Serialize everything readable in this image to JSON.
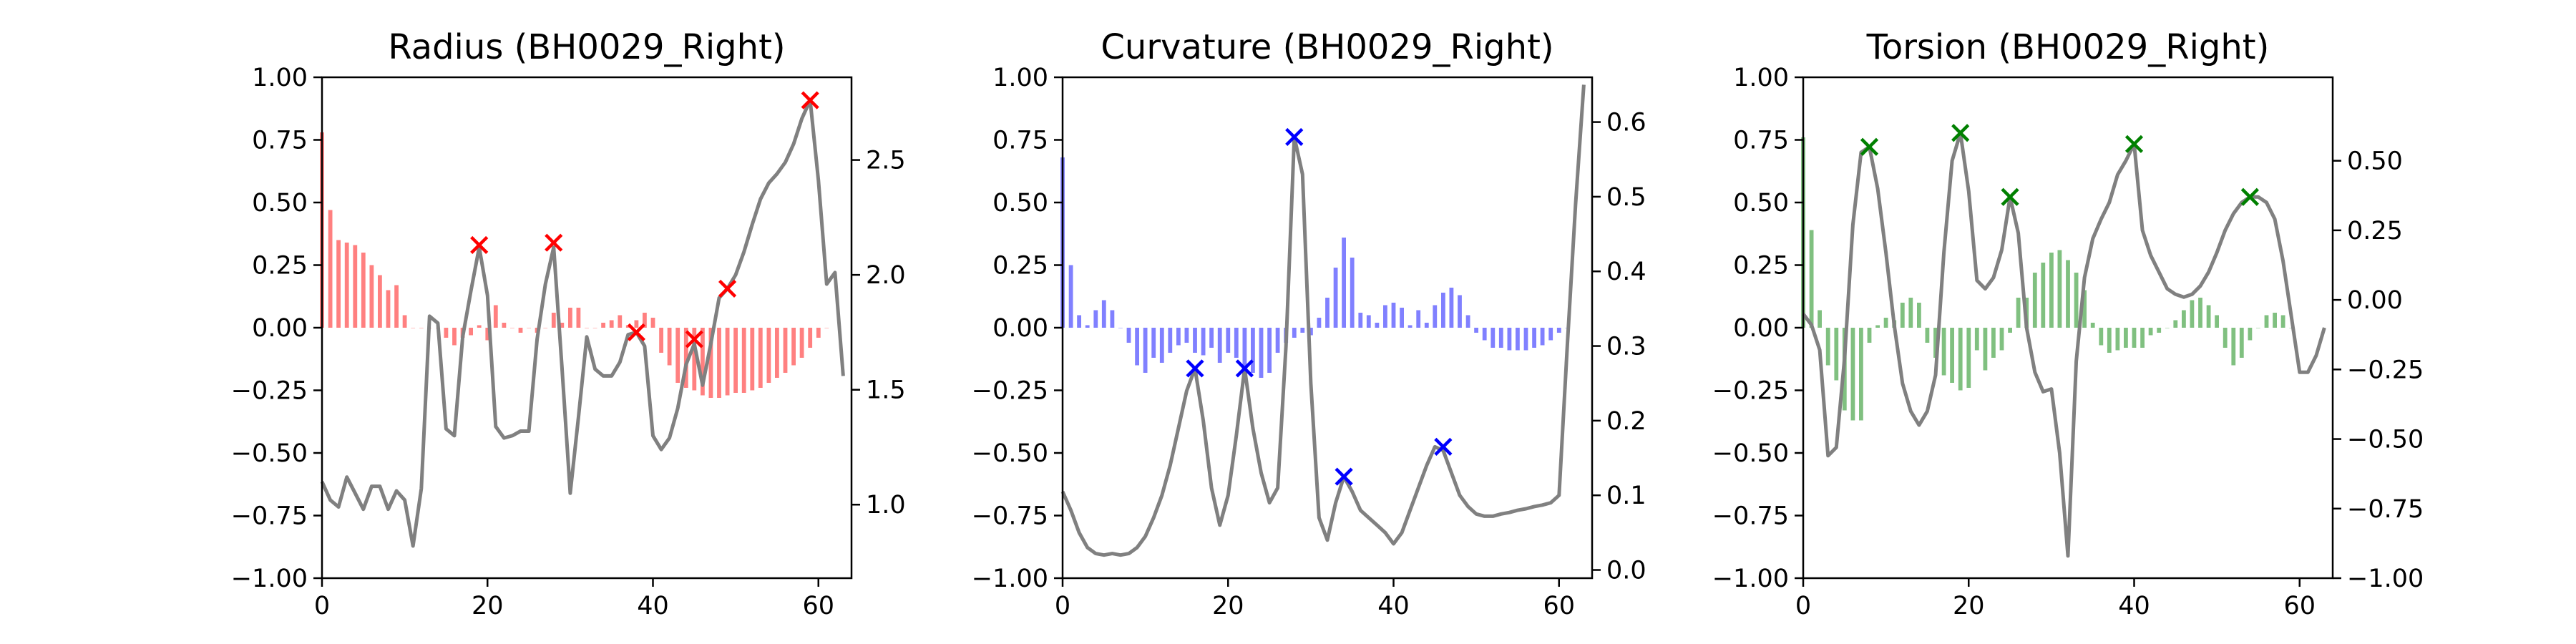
{
  "chart_data": [
    {
      "type": "bar",
      "secondary_type": "line",
      "title": "Radius (BH0029_Right)",
      "color": "#ff0000",
      "bar_color": "#ff8080",
      "line_color": "#808080",
      "xlim": [
        0,
        64
      ],
      "ylim": [
        -1.0,
        1.0
      ],
      "y2lim": [
        0.68,
        2.86
      ],
      "xticks": [
        "0",
        "20",
        "40",
        "60"
      ],
      "xtick_values": [
        0,
        20,
        40,
        60
      ],
      "yticks": [
        "−1.00",
        "−0.75",
        "−0.50",
        "−0.25",
        "0.00",
        "0.25",
        "0.50",
        "0.75",
        "1.00"
      ],
      "ytick_values": [
        -1.0,
        -0.75,
        -0.5,
        -0.25,
        0.0,
        0.25,
        0.5,
        0.75,
        1.0
      ],
      "y2ticks": [
        "1.0",
        "1.5",
        "2.0",
        "2.5"
      ],
      "y2tick_values": [
        1.0,
        1.5,
        2.0,
        2.5
      ],
      "bars": [
        0.78,
        0.47,
        0.35,
        0.34,
        0.33,
        0.3,
        0.25,
        0.21,
        0.15,
        0.17,
        0.05,
        0.0,
        0.0,
        0.0,
        0.0,
        -0.04,
        -0.07,
        -0.04,
        -0.03,
        0.01,
        -0.05,
        0.09,
        0.02,
        0.0,
        -0.02,
        0.0,
        -0.02,
        0.0,
        0.06,
        0.02,
        0.08,
        0.08,
        0.0,
        0.0,
        0.02,
        0.03,
        0.05,
        0.01,
        0.03,
        0.06,
        0.04,
        -0.1,
        -0.15,
        -0.22,
        -0.24,
        -0.25,
        -0.27,
        -0.28,
        -0.28,
        -0.27,
        -0.26,
        -0.26,
        -0.25,
        -0.24,
        -0.22,
        -0.2,
        -0.18,
        -0.15,
        -0.12,
        -0.08,
        -0.04,
        0.0
      ],
      "line_x": [
        0,
        1,
        2,
        3,
        4,
        5,
        6,
        7,
        8,
        9,
        10,
        11,
        12,
        13,
        14,
        15,
        16,
        17,
        18,
        19,
        20,
        21,
        22,
        23,
        24,
        25,
        26,
        27,
        28,
        29,
        30,
        31,
        32,
        33,
        34,
        35,
        36,
        37,
        38,
        39,
        40,
        41,
        42,
        43,
        44,
        45,
        46,
        47,
        48,
        49,
        50,
        51,
        52,
        53,
        54,
        55,
        56,
        57,
        58,
        59,
        60,
        61,
        62,
        63
      ],
      "line_y": [
        1.1,
        1.02,
        0.99,
        1.12,
        1.05,
        0.98,
        1.08,
        1.08,
        0.98,
        1.06,
        1.02,
        0.82,
        1.07,
        1.82,
        1.79,
        1.33,
        1.3,
        1.73,
        1.93,
        2.12,
        1.91,
        1.34,
        1.29,
        1.3,
        1.32,
        1.32,
        1.72,
        1.96,
        2.12,
        1.6,
        1.05,
        1.38,
        1.73,
        1.59,
        1.56,
        1.56,
        1.62,
        1.74,
        1.75,
        1.69,
        1.3,
        1.24,
        1.29,
        1.42,
        1.61,
        1.7,
        1.52,
        1.7,
        1.9,
        1.94,
        2.0,
        2.1,
        2.22,
        2.33,
        2.4,
        2.44,
        2.49,
        2.57,
        2.68,
        2.76,
        2.41,
        1.96,
        2.01,
        1.56
      ],
      "markers": [
        [
          19,
          2.13
        ],
        [
          28,
          2.14
        ],
        [
          38,
          1.75
        ],
        [
          45,
          1.72
        ],
        [
          49,
          1.94
        ],
        [
          59,
          2.76
        ]
      ]
    },
    {
      "type": "bar",
      "secondary_type": "line",
      "title": "Curvature (BH0029_Right)",
      "color": "#0000ff",
      "bar_color": "#8080ff",
      "line_color": "#808080",
      "xlim": [
        0,
        64
      ],
      "ylim": [
        -1.0,
        1.0
      ],
      "y2lim": [
        -0.011,
        0.66
      ],
      "xticks": [
        "0",
        "20",
        "40",
        "60"
      ],
      "xtick_values": [
        0,
        20,
        40,
        60
      ],
      "yticks": [
        "−1.00",
        "−0.75",
        "−0.50",
        "−0.25",
        "0.00",
        "0.25",
        "0.50",
        "0.75",
        "1.00"
      ],
      "ytick_values": [
        -1.0,
        -0.75,
        -0.5,
        -0.25,
        0.0,
        0.25,
        0.5,
        0.75,
        1.0
      ],
      "y2ticks": [
        "0.0",
        "0.1",
        "0.2",
        "0.3",
        "0.4",
        "0.5",
        "0.6"
      ],
      "y2tick_values": [
        0.0,
        0.1,
        0.2,
        0.3,
        0.4,
        0.5,
        0.6
      ],
      "bars": [
        0.68,
        0.25,
        0.05,
        0.01,
        0.07,
        0.11,
        0.07,
        0.0,
        -0.06,
        -0.15,
        -0.18,
        -0.12,
        -0.14,
        -0.1,
        -0.07,
        -0.06,
        -0.1,
        -0.11,
        -0.08,
        -0.14,
        -0.1,
        -0.12,
        -0.16,
        -0.18,
        -0.2,
        -0.18,
        -0.1,
        -0.06,
        -0.04,
        -0.02,
        -0.03,
        0.04,
        0.12,
        0.24,
        0.36,
        0.28,
        0.06,
        0.05,
        0.02,
        0.09,
        0.1,
        0.08,
        0.01,
        0.07,
        0.02,
        0.09,
        0.14,
        0.16,
        0.13,
        0.05,
        -0.02,
        -0.05,
        -0.08,
        -0.08,
        -0.09,
        -0.09,
        -0.09,
        -0.08,
        -0.07,
        -0.05,
        -0.02,
        0.0
      ],
      "line_x": [
        0,
        1,
        2,
        3,
        4,
        5,
        6,
        7,
        8,
        9,
        10,
        11,
        12,
        13,
        14,
        15,
        16,
        17,
        18,
        19,
        20,
        21,
        22,
        23,
        24,
        25,
        26,
        27,
        28,
        29,
        30,
        31,
        32,
        33,
        34,
        35,
        36,
        37,
        38,
        39,
        40,
        41,
        42,
        43,
        44,
        45,
        46,
        47,
        48,
        49,
        50,
        51,
        52,
        53,
        54,
        55,
        56,
        57,
        58,
        59,
        60,
        61,
        62,
        63
      ],
      "line_y": [
        0.105,
        0.08,
        0.05,
        0.03,
        0.022,
        0.02,
        0.022,
        0.02,
        0.022,
        0.03,
        0.045,
        0.07,
        0.1,
        0.14,
        0.19,
        0.24,
        0.27,
        0.2,
        0.11,
        0.06,
        0.1,
        0.18,
        0.27,
        0.19,
        0.13,
        0.09,
        0.11,
        0.3,
        0.58,
        0.53,
        0.25,
        0.07,
        0.04,
        0.09,
        0.125,
        0.105,
        0.08,
        0.07,
        0.06,
        0.05,
        0.035,
        0.05,
        0.08,
        0.11,
        0.14,
        0.165,
        0.16,
        0.13,
        0.1,
        0.085,
        0.075,
        0.072,
        0.072,
        0.075,
        0.077,
        0.08,
        0.082,
        0.085,
        0.087,
        0.09,
        0.1,
        0.3,
        0.49,
        0.65
      ],
      "markers": [
        [
          16,
          0.27
        ],
        [
          22,
          0.27
        ],
        [
          28,
          0.58
        ],
        [
          34,
          0.125
        ],
        [
          46,
          0.165
        ]
      ]
    },
    {
      "type": "bar",
      "secondary_type": "line",
      "title": "Torsion (BH0029_Right)",
      "color": "#008000",
      "bar_color": "#80c080",
      "line_color": "#808080",
      "xlim": [
        0,
        64
      ],
      "ylim": [
        -1.0,
        1.0
      ],
      "y2lim": [
        -1.0,
        0.8
      ],
      "xticks": [
        "0",
        "20",
        "40",
        "60"
      ],
      "xtick_values": [
        0,
        20,
        40,
        60
      ],
      "yticks": [
        "−1.00",
        "−0.75",
        "−0.50",
        "−0.25",
        "0.00",
        "0.25",
        "0.50",
        "0.75",
        "1.00"
      ],
      "ytick_values": [
        -1.0,
        -0.75,
        -0.5,
        -0.25,
        0.0,
        0.25,
        0.5,
        0.75,
        1.0
      ],
      "y2ticks": [
        "−1.00",
        "−0.75",
        "−0.50",
        "−0.25",
        "0.00",
        "0.25",
        "0.50"
      ],
      "y2tick_values": [
        -1.0,
        -0.75,
        -0.5,
        -0.25,
        0.0,
        0.25,
        0.5
      ],
      "bars": [
        0.76,
        0.39,
        0.07,
        -0.15,
        -0.21,
        -0.33,
        -0.37,
        -0.37,
        -0.06,
        0.01,
        0.04,
        0.03,
        0.1,
        0.12,
        0.1,
        -0.06,
        -0.12,
        -0.19,
        -0.22,
        -0.25,
        -0.24,
        -0.09,
        -0.17,
        -0.12,
        -0.09,
        -0.02,
        0.12,
        0.12,
        0.22,
        0.26,
        0.3,
        0.31,
        0.27,
        0.22,
        0.15,
        0.02,
        -0.07,
        -0.1,
        -0.09,
        -0.08,
        -0.08,
        -0.08,
        -0.03,
        -0.02,
        0.0,
        0.03,
        0.07,
        0.11,
        0.12,
        0.09,
        0.05,
        -0.08,
        -0.15,
        -0.12,
        -0.05,
        0.0,
        0.05,
        0.06,
        0.05,
        0.0
      ],
      "line_x": [
        0,
        1,
        2,
        3,
        4,
        5,
        6,
        7,
        8,
        9,
        10,
        11,
        12,
        13,
        14,
        15,
        16,
        17,
        18,
        19,
        20,
        21,
        22,
        23,
        24,
        25,
        26,
        27,
        28,
        29,
        30,
        31,
        32,
        33,
        34,
        35,
        36,
        37,
        38,
        39,
        40,
        41,
        42,
        43,
        44,
        45,
        46,
        47,
        48,
        49,
        50,
        51,
        52,
        53,
        54,
        55,
        56,
        57,
        58,
        59,
        60,
        61,
        62,
        63
      ],
      "line_y": [
        -0.05,
        -0.09,
        -0.18,
        -0.56,
        -0.53,
        -0.21,
        0.27,
        0.53,
        0.55,
        0.4,
        0.17,
        -0.09,
        -0.3,
        -0.4,
        -0.45,
        -0.4,
        -0.27,
        0.17,
        0.5,
        0.6,
        0.39,
        0.07,
        0.04,
        0.08,
        0.18,
        0.37,
        0.24,
        -0.1,
        -0.26,
        -0.33,
        -0.32,
        -0.55,
        -0.92,
        -0.22,
        0.08,
        0.22,
        0.29,
        0.35,
        0.45,
        0.5,
        0.56,
        0.25,
        0.16,
        0.1,
        0.04,
        0.02,
        0.01,
        0.02,
        0.05,
        0.1,
        0.17,
        0.25,
        0.31,
        0.35,
        0.37,
        0.37,
        0.35,
        0.29,
        0.14,
        -0.06,
        -0.26,
        -0.26,
        -0.2,
        -0.1
      ],
      "markers": [
        [
          8,
          0.55
        ],
        [
          19,
          0.6
        ],
        [
          25,
          0.37
        ],
        [
          40,
          0.56
        ],
        [
          54,
          0.37
        ]
      ]
    }
  ]
}
